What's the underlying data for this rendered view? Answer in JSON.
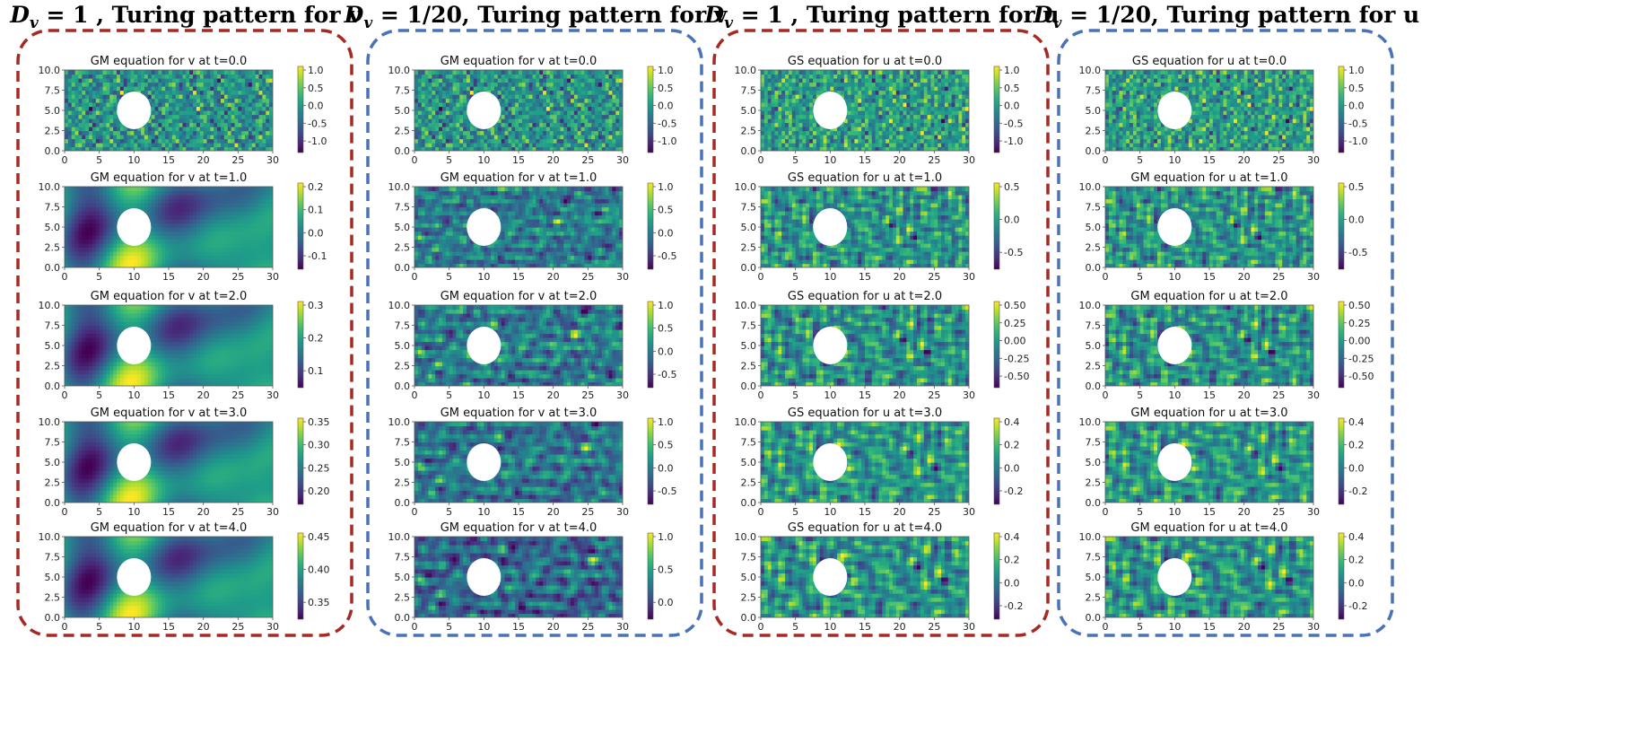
{
  "columns": [
    {
      "title": "D_v = 1 , Turing pattern for v",
      "title_main": "D",
      "title_sub": "v",
      "title_rest": " = 1 , Turing pattern for v",
      "border_color": "#a52a23",
      "panels": [
        {
          "title": "GM equation for v at t=0.0",
          "cbar_ticks": [
            "1.0",
            "0.5",
            "0.0",
            "-0.5",
            "-1.0"
          ],
          "smooth": 0.14,
          "seed": 11
        },
        {
          "title": "GM equation for v at t=1.0",
          "cbar_ticks": [
            "0.2",
            "0.1",
            "0.0",
            "-0.1"
          ],
          "smooth": 0.95,
          "seed": 21
        },
        {
          "title": "GM equation for v at t=2.0",
          "cbar_ticks": [
            "0.3",
            "0.2",
            "0.1"
          ],
          "smooth": 1.0,
          "seed": 21
        },
        {
          "title": "GM equation for v at t=3.0",
          "cbar_ticks": [
            "0.35",
            "0.30",
            "0.25",
            "0.20"
          ],
          "smooth": 1.0,
          "seed": 21
        },
        {
          "title": "GM equation for v at t=4.0",
          "cbar_ticks": [
            "0.45",
            "0.40",
            "0.35"
          ],
          "smooth": 1.0,
          "seed": 21
        }
      ]
    },
    {
      "title": "D_v = 1/20, Turing pattern for v",
      "title_main": "D",
      "title_sub": "v",
      "title_rest": " = 1/20, Turing pattern for v",
      "border_color": "#4a72b8",
      "panels": [
        {
          "title": "GM equation for v at t=0.0",
          "cbar_ticks": [
            "1.0",
            "0.5",
            "0.0",
            "-0.5",
            "-1.0"
          ],
          "smooth": 0.14,
          "seed": 11
        },
        {
          "title": "GM equation for v at t=1.0",
          "cbar_ticks": [
            "1.0",
            "0.5",
            "0.0",
            "-0.5"
          ],
          "smooth": 0.4,
          "seed": 31
        },
        {
          "title": "GM equation for v at t=2.0",
          "cbar_ticks": [
            "1.0",
            "0.5",
            "0.0",
            "-0.5"
          ],
          "smooth": 0.45,
          "seed": 31
        },
        {
          "title": "GM equation for v at t=3.0",
          "cbar_ticks": [
            "1.0",
            "0.5",
            "0.0",
            "-0.5"
          ],
          "smooth": 0.48,
          "seed": 31
        },
        {
          "title": "GM equation for v at t=4.0",
          "cbar_ticks": [
            "1.0",
            "0.5",
            "0.0"
          ],
          "smooth": 0.5,
          "seed": 31
        }
      ]
    },
    {
      "title": "D_v = 1 , Turing pattern for u",
      "title_main": "D",
      "title_sub": "v",
      "title_rest": " = 1 , Turing pattern for u",
      "border_color": "#a52a23",
      "panels": [
        {
          "title": "GS equation for u at t=0.0",
          "cbar_ticks": [
            "1.0",
            "0.5",
            "0.0",
            "-0.5",
            "-1.0"
          ],
          "smooth": 0.1,
          "seed": 41
        },
        {
          "title": "GS equation for u at t=1.0",
          "cbar_ticks": [
            "0.5",
            "0.0",
            "-0.5"
          ],
          "smooth": 0.35,
          "seed": 51
        },
        {
          "title": "GS equation for u at t=2.0",
          "cbar_ticks": [
            "0.50",
            "0.25",
            "0.00",
            "-0.25",
            "-0.50"
          ],
          "smooth": 0.38,
          "seed": 51
        },
        {
          "title": "GS equation for u at t=3.0",
          "cbar_ticks": [
            "0.4",
            "0.2",
            "0.0",
            "-0.2"
          ],
          "smooth": 0.4,
          "seed": 51
        },
        {
          "title": "GS equation for u at t=4.0",
          "cbar_ticks": [
            "0.4",
            "0.2",
            "0.0",
            "-0.2"
          ],
          "smooth": 0.42,
          "seed": 51
        }
      ]
    },
    {
      "title": "D_v = 1/20, Turing pattern for u",
      "title_main": "D",
      "title_sub": "v",
      "title_rest": " = 1/20, Turing pattern for u",
      "border_color": "#4a72b8",
      "panels": [
        {
          "title": "GS equation for u at t=0.0",
          "cbar_ticks": [
            "1.0",
            "0.5",
            "0.0",
            "-0.5",
            "-1.0"
          ],
          "smooth": 0.1,
          "seed": 41
        },
        {
          "title": "GM equation for u  at t=1.0",
          "cbar_ticks": [
            "0.5",
            "0.0",
            "-0.5"
          ],
          "smooth": 0.35,
          "seed": 51
        },
        {
          "title": "GM equation for u  at t=2.0",
          "cbar_ticks": [
            "0.50",
            "0.25",
            "0.00",
            "-0.25",
            "-0.50"
          ],
          "smooth": 0.38,
          "seed": 51
        },
        {
          "title": "GM equation for u  at t=3.0",
          "cbar_ticks": [
            "0.4",
            "0.2",
            "0.0",
            "-0.2"
          ],
          "smooth": 0.4,
          "seed": 51
        },
        {
          "title": "GM equation for u  at t=4.0",
          "cbar_ticks": [
            "0.4",
            "0.2",
            "0.0",
            "-0.2"
          ],
          "smooth": 0.42,
          "seed": 51
        }
      ]
    }
  ],
  "chart_data": {
    "type": "heatmap",
    "colormap": "viridis",
    "x_ticks": [
      "0",
      "5",
      "10",
      "15",
      "20",
      "25",
      "30"
    ],
    "y_ticks": [
      "10.0",
      "7.5",
      "5.0",
      "2.5",
      "0.0"
    ],
    "xlim": [
      0,
      30
    ],
    "ylim": [
      0,
      10
    ],
    "obstacle": {
      "shape": "circle",
      "center": [
        10,
        5
      ],
      "radius": 2.5
    }
  }
}
